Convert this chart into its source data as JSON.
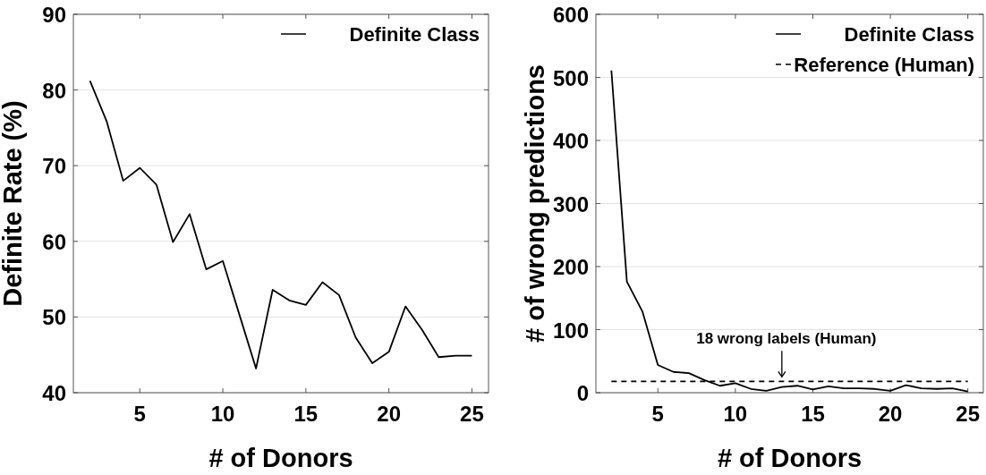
{
  "chart_data": [
    {
      "type": "line",
      "xlabel": "# of Donors",
      "ylabel": "Definite Rate (%)",
      "x": [
        2,
        3,
        4,
        5,
        6,
        7,
        8,
        9,
        10,
        11,
        12,
        13,
        14,
        15,
        16,
        17,
        18,
        19,
        20,
        21,
        22,
        23,
        24,
        25
      ],
      "series": [
        {
          "name": "Definite Class",
          "color": "#000000",
          "line_style": "solid",
          "values": [
            81.2,
            75.9,
            68.0,
            69.7,
            67.5,
            59.9,
            63.6,
            56.3,
            57.4,
            50.3,
            43.2,
            53.6,
            52.2,
            51.6,
            54.6,
            52.9,
            47.3,
            43.9,
            45.4,
            51.4,
            48.3,
            44.7,
            44.9,
            44.9
          ]
        }
      ],
      "xlim": [
        1,
        26
      ],
      "xticks": [
        5,
        10,
        15,
        20,
        25
      ],
      "ylim": [
        40,
        90
      ],
      "yticks": [
        40,
        50,
        60,
        70,
        80,
        90
      ],
      "grid": "y",
      "legend": "top right"
    },
    {
      "type": "line",
      "xlabel": "# of Donors",
      "ylabel": "# of wrong predictions",
      "x": [
        2,
        3,
        4,
        5,
        6,
        7,
        8,
        9,
        10,
        11,
        12,
        13,
        14,
        15,
        16,
        17,
        18,
        19,
        20,
        21,
        22,
        23,
        24,
        25
      ],
      "series": [
        {
          "name": "Definite Class",
          "color": "#000000",
          "line_style": "solid",
          "values": [
            511,
            176,
            129,
            44,
            33,
            31,
            20,
            11,
            15,
            6,
            3,
            9,
            11,
            5,
            10,
            7,
            7,
            6,
            3,
            12,
            7,
            6,
            7,
            2
          ]
        },
        {
          "name": "Reference (Human)",
          "color": "#000000",
          "line_style": "dashed",
          "x": [
            2,
            25
          ],
          "values": [
            18,
            18
          ]
        }
      ],
      "xlim": [
        1,
        26
      ],
      "xticks": [
        5,
        10,
        15,
        20,
        25
      ],
      "ylim": [
        0,
        600
      ],
      "yticks": [
        0,
        100,
        200,
        300,
        400,
        500,
        600
      ],
      "grid": "y",
      "legend": "top right",
      "annotations": [
        {
          "text": "18 wrong labels (Human)",
          "x": 13,
          "y": 18
        }
      ]
    }
  ]
}
